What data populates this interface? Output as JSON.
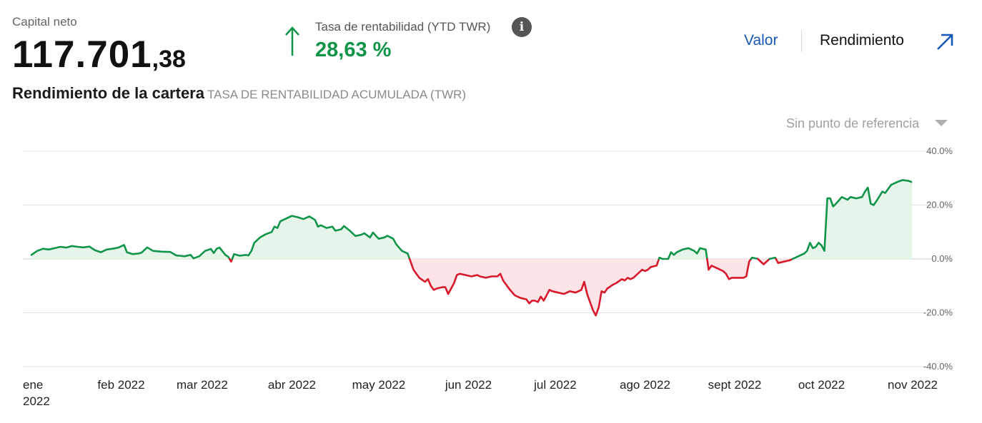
{
  "header": {
    "capital_label": "Capital neto",
    "capital_int": "117.701",
    "capital_dec": ",38",
    "twr_label": "Tasa de rentabilidad (YTD TWR)",
    "twr_value": "28,63 %",
    "info_glyph": "i",
    "twr_arrow_icon": "arrow-up-icon",
    "positive_color": "#10944a"
  },
  "tabs": {
    "valor": "Valor",
    "rendimiento": "Rendimiento",
    "expand_icon": "expand-arrow-icon"
  },
  "section": {
    "title": "Rendimiento de la cartera",
    "subtitle": "TASA DE RENTABILIDAD ACUMULADA (TWR)"
  },
  "benchmark": {
    "label": "Sin punto de referencia",
    "caret_icon": "caret-down-icon"
  },
  "chart_data": {
    "type": "area",
    "ylim": [
      -40,
      40
    ],
    "yticks": [
      {
        "v": 40,
        "label": "40.0%"
      },
      {
        "v": 20,
        "label": "20.0%"
      },
      {
        "v": 0,
        "label": "0.0%"
      },
      {
        "v": -20,
        "label": "-20.0%"
      },
      {
        "v": -40,
        "label": "-40.0%"
      }
    ],
    "xticks": [
      {
        "d": 0,
        "l1": "ene",
        "l2": "2022"
      },
      {
        "d": 31,
        "l1": "feb 2022"
      },
      {
        "d": 59,
        "l1": "mar 2022"
      },
      {
        "d": 90,
        "l1": "abr 2022"
      },
      {
        "d": 120,
        "l1": "may 2022"
      },
      {
        "d": 151,
        "l1": "jun 2022"
      },
      {
        "d": 181,
        "l1": "jul 2022"
      },
      {
        "d": 212,
        "l1": "ago 2022"
      },
      {
        "d": 243,
        "l1": "sept 2022"
      },
      {
        "d": 273,
        "l1": "oct 2022"
      },
      {
        "d": 304,
        "l1": "nov 2022"
      }
    ],
    "x_end": 304,
    "positive_color": "#10944a",
    "negative_color": "#d8192c",
    "positive_fill": "#e6f5ea",
    "negative_fill": "#fde4e6",
    "grid": true,
    "series": [
      {
        "points": [
          [
            0,
            1.5
          ],
          [
            2,
            3
          ],
          [
            4,
            3.8
          ],
          [
            6,
            3.5
          ],
          [
            8,
            4
          ],
          [
            10,
            4.5
          ],
          [
            12,
            4.2
          ],
          [
            14,
            4.8
          ],
          [
            16,
            4.5
          ],
          [
            18,
            4.3
          ],
          [
            20,
            4.6
          ],
          [
            22,
            3.2
          ],
          [
            24,
            2.5
          ],
          [
            26,
            3.5
          ],
          [
            28,
            3.8
          ],
          [
            30,
            4.2
          ],
          [
            32,
            5.2
          ],
          [
            33,
            2.5
          ],
          [
            35,
            1.8
          ],
          [
            37,
            2
          ],
          [
            38,
            2.3
          ],
          [
            40,
            4.3
          ],
          [
            42,
            3
          ],
          [
            45,
            2.7
          ],
          [
            48,
            2.6
          ],
          [
            50,
            1.3
          ],
          [
            53,
            1
          ],
          [
            55,
            1.5
          ],
          [
            56,
            0.2
          ],
          [
            58,
            1
          ],
          [
            60,
            3
          ],
          [
            62,
            3.7
          ],
          [
            63,
            2.2
          ],
          [
            64,
            3.8
          ],
          [
            65,
            4.2
          ],
          [
            67,
            1.5
          ],
          [
            68,
            0.8
          ],
          [
            69,
            -1
          ],
          [
            70,
            1.8
          ],
          [
            72,
            1.2
          ],
          [
            74,
            1.5
          ],
          [
            75,
            1.3
          ],
          [
            76,
            3
          ],
          [
            77,
            6
          ],
          [
            79,
            8
          ],
          [
            81,
            9.2
          ],
          [
            83,
            10
          ],
          [
            84,
            12
          ],
          [
            85,
            11.5
          ],
          [
            86,
            14
          ],
          [
            88,
            15
          ],
          [
            90,
            16
          ],
          [
            92,
            15.5
          ],
          [
            94,
            14.8
          ],
          [
            96,
            15.8
          ],
          [
            98,
            14.5
          ],
          [
            99,
            12
          ],
          [
            100,
            12.5
          ],
          [
            102,
            11.5
          ],
          [
            104,
            12
          ],
          [
            105,
            10.5
          ],
          [
            107,
            11
          ],
          [
            108,
            12.2
          ],
          [
            110,
            10.5
          ],
          [
            112,
            8.5
          ],
          [
            114,
            9
          ],
          [
            115,
            9.5
          ],
          [
            117,
            8
          ],
          [
            118,
            9.8
          ],
          [
            120,
            7.5
          ],
          [
            122,
            8
          ],
          [
            123,
            8.6
          ],
          [
            125,
            7.5
          ],
          [
            126,
            5.5
          ],
          [
            128,
            3
          ],
          [
            130,
            2
          ],
          [
            131,
            -1
          ],
          [
            132,
            -4
          ],
          [
            134,
            -7
          ],
          [
            136,
            -8.5
          ],
          [
            137,
            -7.5
          ],
          [
            138,
            -10
          ],
          [
            139,
            -11.5
          ],
          [
            140,
            -11
          ],
          [
            142,
            -10.5
          ],
          [
            143,
            -10.5
          ],
          [
            144,
            -13
          ],
          [
            146,
            -9
          ],
          [
            147,
            -6
          ],
          [
            148,
            -5.5
          ],
          [
            150,
            -6
          ],
          [
            152,
            -6.5
          ],
          [
            154,
            -6
          ],
          [
            155,
            -6.5
          ],
          [
            157,
            -7
          ],
          [
            159,
            -6.5
          ],
          [
            161,
            -6.5
          ],
          [
            162,
            -5.5
          ],
          [
            163,
            -8
          ],
          [
            165,
            -11
          ],
          [
            167,
            -13.5
          ],
          [
            169,
            -14.5
          ],
          [
            171,
            -15
          ],
          [
            172,
            -16.5
          ],
          [
            173,
            -15.5
          ],
          [
            174,
            -15.5
          ],
          [
            175,
            -16
          ],
          [
            176,
            -14
          ],
          [
            177,
            -15.5
          ],
          [
            178,
            -13.5
          ],
          [
            179,
            -11.5
          ],
          [
            180,
            -12
          ],
          [
            182,
            -12.5
          ],
          [
            184,
            -13
          ],
          [
            186,
            -12
          ],
          [
            188,
            -12.5
          ],
          [
            190,
            -11.5
          ],
          [
            191,
            -8.5
          ],
          [
            192,
            -13
          ],
          [
            194,
            -19
          ],
          [
            195,
            -21
          ],
          [
            196,
            -18
          ],
          [
            197,
            -12
          ],
          [
            198,
            -12.5
          ],
          [
            199,
            -11
          ],
          [
            201,
            -9.5
          ],
          [
            202,
            -9
          ],
          [
            204,
            -7.5
          ],
          [
            205,
            -8
          ],
          [
            206,
            -7
          ],
          [
            207,
            -7.5
          ],
          [
            208,
            -7
          ],
          [
            210,
            -5
          ],
          [
            211,
            -4
          ],
          [
            212,
            -4.5
          ],
          [
            213,
            -4
          ],
          [
            214,
            -3
          ],
          [
            216,
            -2.5
          ],
          [
            217,
            0.5
          ],
          [
            218,
            0
          ],
          [
            220,
            0
          ],
          [
            221,
            2.5
          ],
          [
            222,
            1.5
          ],
          [
            223,
            2.5
          ],
          [
            225,
            3.5
          ],
          [
            227,
            4
          ],
          [
            229,
            3
          ],
          [
            230,
            2
          ],
          [
            231,
            4
          ],
          [
            233,
            3.5
          ],
          [
            234,
            -4
          ],
          [
            235,
            -2.5
          ],
          [
            236,
            -3
          ],
          [
            238,
            -4
          ],
          [
            239,
            -4.5
          ],
          [
            240,
            -5.5
          ],
          [
            241,
            -7.5
          ],
          [
            242,
            -7
          ],
          [
            244,
            -7
          ],
          [
            246,
            -7
          ],
          [
            247,
            -6.5
          ],
          [
            248,
            -1
          ],
          [
            249,
            0.5
          ],
          [
            251,
            0
          ],
          [
            253,
            -2
          ],
          [
            255,
            0
          ],
          [
            257,
            0.5
          ],
          [
            258,
            -1.5
          ],
          [
            260,
            -1
          ],
          [
            262,
            -0.5
          ],
          [
            263,
            0
          ],
          [
            265,
            1
          ],
          [
            267,
            2
          ],
          [
            268,
            3
          ],
          [
            269,
            6
          ],
          [
            270,
            4
          ],
          [
            271,
            4.5
          ],
          [
            272,
            6
          ],
          [
            273,
            5
          ],
          [
            274,
            3
          ],
          [
            275,
            22.5
          ],
          [
            276,
            22.5
          ],
          [
            277,
            19.5
          ],
          [
            278,
            20.5
          ],
          [
            280,
            23
          ],
          [
            282,
            22
          ],
          [
            283,
            23
          ],
          [
            285,
            22.5
          ],
          [
            287,
            23
          ],
          [
            288,
            25
          ],
          [
            289,
            26.5
          ],
          [
            290,
            20.5
          ],
          [
            291,
            20
          ],
          [
            292,
            21.5
          ],
          [
            294,
            25
          ],
          [
            295,
            24.5
          ],
          [
            297,
            27.5
          ],
          [
            299,
            28.5
          ],
          [
            301,
            29.3
          ],
          [
            303,
            29
          ],
          [
            304,
            28.6
          ]
        ]
      }
    ]
  }
}
